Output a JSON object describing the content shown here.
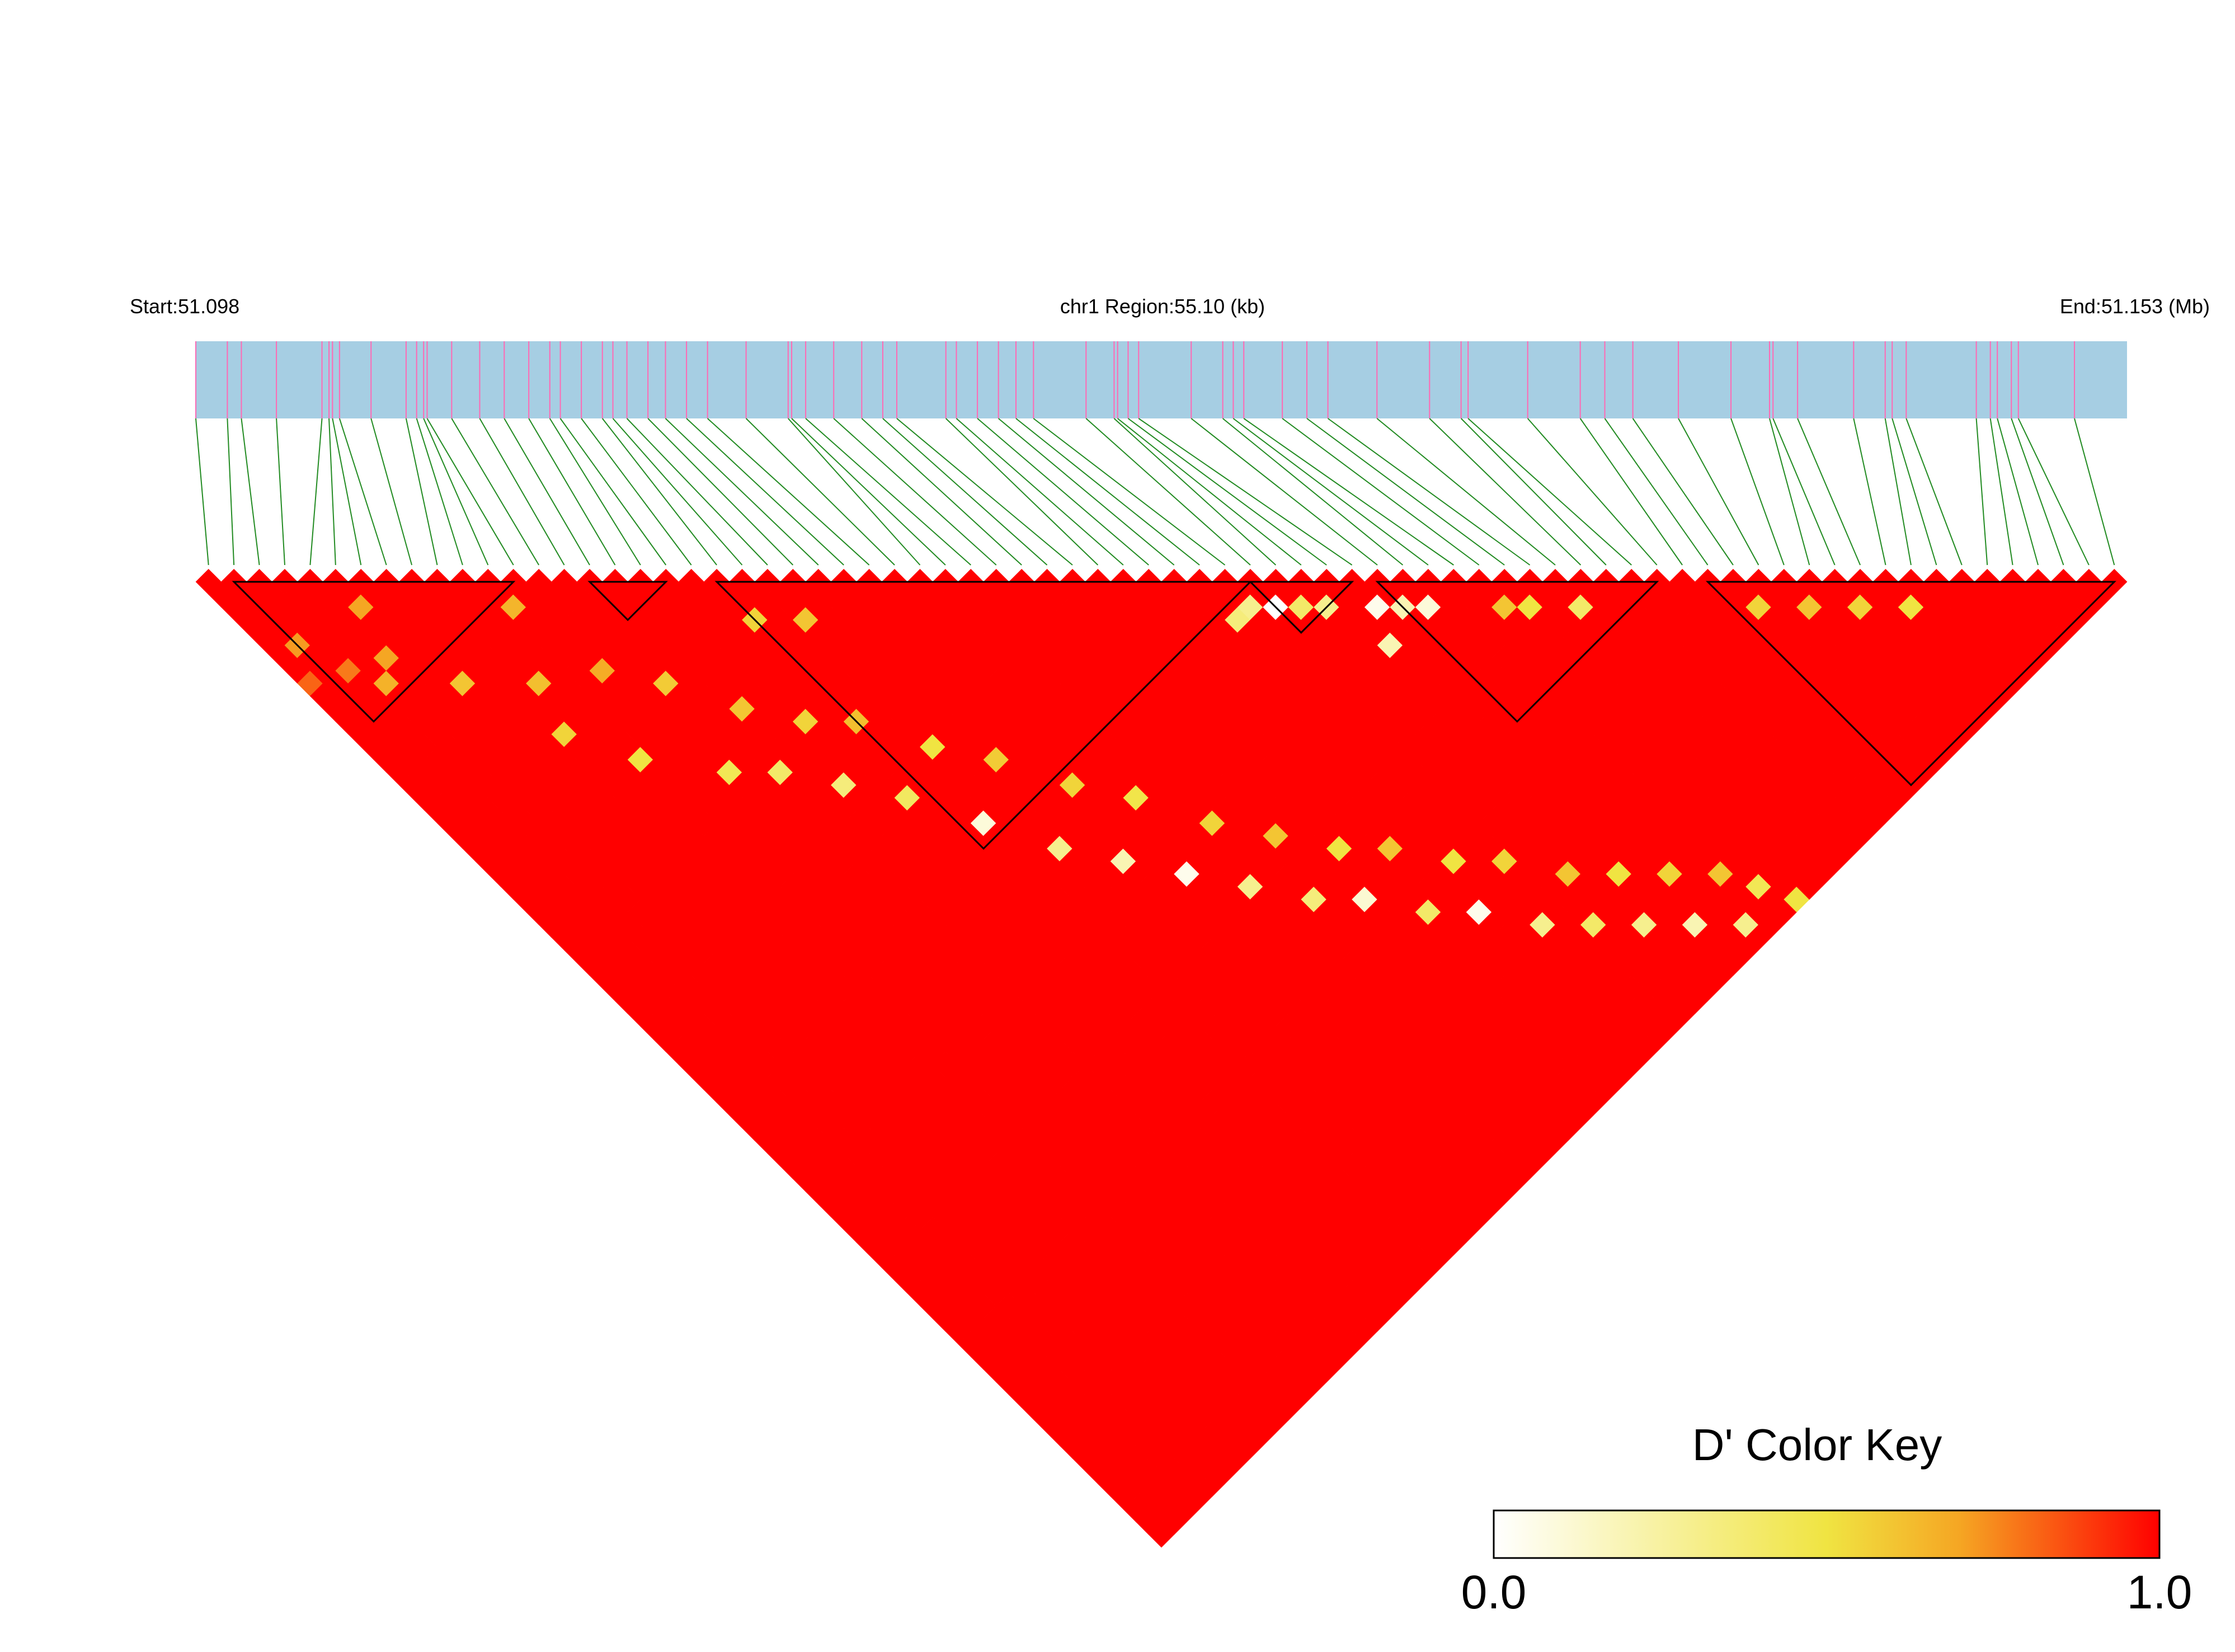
{
  "chart_data": {
    "type": "heatmap",
    "title": "",
    "xlabel": "",
    "ylabel": "",
    "region_header": {
      "start_label": "Start:51.098",
      "center_label": "chr1 Region:55.10 (kb)",
      "end_label": "End:51.153 (Mb)",
      "start_mb": 51.098,
      "end_mb": 51.153,
      "region_kb": 55.1,
      "chromosome": "chr1"
    },
    "snp_positions_kb": [
      0.0,
      0.9,
      1.3,
      2.3,
      3.6,
      3.8,
      3.9,
      4.1,
      5.0,
      6.0,
      6.3,
      6.5,
      6.6,
      7.3,
      8.1,
      8.8,
      9.5,
      10.1,
      10.4,
      11.0,
      11.6,
      11.9,
      12.3,
      12.9,
      13.4,
      14.0,
      14.6,
      15.7,
      16.9,
      17.0,
      17.4,
      18.2,
      19.0,
      19.6,
      20.0,
      21.4,
      21.7,
      22.3,
      22.9,
      23.4,
      23.9,
      25.4,
      26.2,
      26.3,
      26.6,
      26.9,
      28.4,
      29.3,
      29.6,
      29.9,
      31.0,
      31.7,
      32.3,
      33.7,
      35.2,
      36.1,
      36.3,
      38.0,
      39.5,
      40.2,
      41.0,
      42.3,
      43.8,
      44.9,
      45.0,
      45.7,
      47.3,
      48.2,
      48.4,
      48.8,
      50.8,
      51.2,
      51.4,
      51.8,
      52.0,
      53.6
    ],
    "n_snps": 76,
    "ld_blocks": [
      {
        "first": 1,
        "last": 12
      },
      {
        "first": 15,
        "last": 18
      },
      {
        "first": 20,
        "last": 41
      },
      {
        "first": 41,
        "last": 45
      },
      {
        "first": 46,
        "last": 57
      },
      {
        "first": 59,
        "last": 75
      }
    ],
    "dprime_matrix_note": "Pairwise D' (lower triangle) rendered as diamond cells; mostly 1.0 with scattered lower values.",
    "dprime_overrides": [
      [
        0,
        8,
        0.82
      ],
      [
        1,
        6,
        0.72
      ],
      [
        2,
        9,
        0.78
      ],
      [
        3,
        11,
        0.66
      ],
      [
        4,
        10,
        0.7
      ],
      [
        6,
        14,
        0.6
      ],
      [
        8,
        20,
        0.55
      ],
      [
        9,
        17,
        0.62
      ],
      [
        10,
        24,
        0.5
      ],
      [
        12,
        19,
        0.68
      ],
      [
        13,
        28,
        0.45
      ],
      [
        14,
        22,
        0.58
      ],
      [
        15,
        30,
        0.4
      ],
      [
        16,
        26,
        0.6
      ],
      [
        17,
        33,
        0.35
      ],
      [
        18,
        29,
        0.55
      ],
      [
        19,
        36,
        0.42
      ],
      [
        20,
        31,
        0.62
      ],
      [
        21,
        40,
        0.1
      ],
      [
        22,
        35,
        0.5
      ],
      [
        23,
        44,
        0.3
      ],
      [
        24,
        38,
        0.58
      ],
      [
        25,
        47,
        0.2
      ],
      [
        26,
        42,
        0.55
      ],
      [
        27,
        50,
        0.05
      ],
      [
        28,
        45,
        0.48
      ],
      [
        29,
        53,
        0.3
      ],
      [
        30,
        49,
        0.55
      ],
      [
        31,
        56,
        0.35
      ],
      [
        32,
        52,
        0.6
      ],
      [
        33,
        58,
        0.12
      ],
      [
        34,
        55,
        0.5
      ],
      [
        35,
        61,
        0.4
      ],
      [
        36,
        57,
        0.6
      ],
      [
        37,
        63,
        0.05
      ],
      [
        38,
        60,
        0.5
      ],
      [
        39,
        66,
        0.3
      ],
      [
        40,
        62,
        0.55
      ],
      [
        41,
        68,
        0.4
      ],
      [
        42,
        65,
        0.6
      ],
      [
        43,
        70,
        0.3
      ],
      [
        44,
        67,
        0.5
      ],
      [
        45,
        72,
        0.2
      ],
      [
        46,
        69,
        0.55
      ],
      [
        47,
        74,
        0.3
      ],
      [
        48,
        71,
        0.6
      ],
      [
        49,
        73,
        0.45
      ],
      [
        50,
        75,
        0.5
      ],
      [
        42,
        44,
        0.4
      ],
      [
        43,
        45,
        0.3
      ],
      [
        45,
        47,
        0.05
      ],
      [
        44,
        49,
        0.2
      ],
      [
        50,
        52,
        0.6
      ],
      [
        51,
        53,
        0.5
      ],
      [
        53,
        55,
        0.4
      ],
      [
        40,
        42,
        0.3
      ],
      [
        39,
        42,
        0.35
      ],
      [
        41,
        43,
        0.0
      ],
      [
        46,
        48,
        0.2
      ],
      [
        47,
        49,
        0.1
      ],
      [
        20,
        23,
        0.55
      ],
      [
        22,
        25,
        0.6
      ],
      [
        60,
        62,
        0.55
      ],
      [
        62,
        64,
        0.6
      ],
      [
        64,
        66,
        0.55
      ],
      [
        66,
        68,
        0.5
      ],
      [
        5,
        7,
        0.7
      ],
      [
        11,
        13,
        0.65
      ]
    ],
    "color_key": {
      "title": "D' Color Key",
      "min_label": "0.0",
      "max_label": "1.0",
      "min": 0.0,
      "max": 1.0,
      "stops": [
        "#ffffff",
        "#f0e442",
        "#f5a623",
        "#ff0000"
      ]
    },
    "colors": {
      "track_fill": "#a6cee3",
      "snp_tick": "#ff69b4",
      "connector": "#228b22",
      "cell_high": "#ff0000",
      "block_outline": "#000000"
    },
    "legend_position": "bottom-right"
  }
}
